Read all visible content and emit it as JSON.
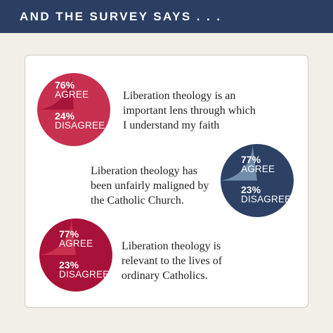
{
  "header": {
    "title": "AND THE SURVEY SAYS . . ."
  },
  "colors": {
    "header_bg": "#2b3f63",
    "red_agree": "#c8304f",
    "red_disagree": "#a8153a",
    "crimson_agree": "#a91238",
    "crimson_disagree": "#c8304f",
    "navy_agree": "#2c4164",
    "navy_disagree": "#6f8cab"
  },
  "chart_data": [
    {
      "type": "pie",
      "statement_lines": [
        "Liberation theology is an",
        "important lens through which",
        "I understand my faith"
      ],
      "slices": [
        {
          "pct_text": "76%",
          "label": "AGREE",
          "value": 76
        },
        {
          "pct_text": "24%",
          "label": "DISAGREE",
          "value": 24
        }
      ]
    },
    {
      "type": "pie",
      "statement_lines": [
        "Liberation theology has",
        "been unfairly maligned by",
        "the Catholic Church."
      ],
      "slices": [
        {
          "pct_text": "77%",
          "label": "AGREE",
          "value": 77
        },
        {
          "pct_text": "23%",
          "label": "DISAGREE",
          "value": 23
        }
      ]
    },
    {
      "type": "pie",
      "statement_lines": [
        "Liberation theology is",
        "relevant to the lives of",
        "ordinary Catholics."
      ],
      "slices": [
        {
          "pct_text": "77%",
          "label": "AGREE",
          "value": 77
        },
        {
          "pct_text": "23%",
          "label": "DISAGREE",
          "value": 23
        }
      ]
    }
  ]
}
